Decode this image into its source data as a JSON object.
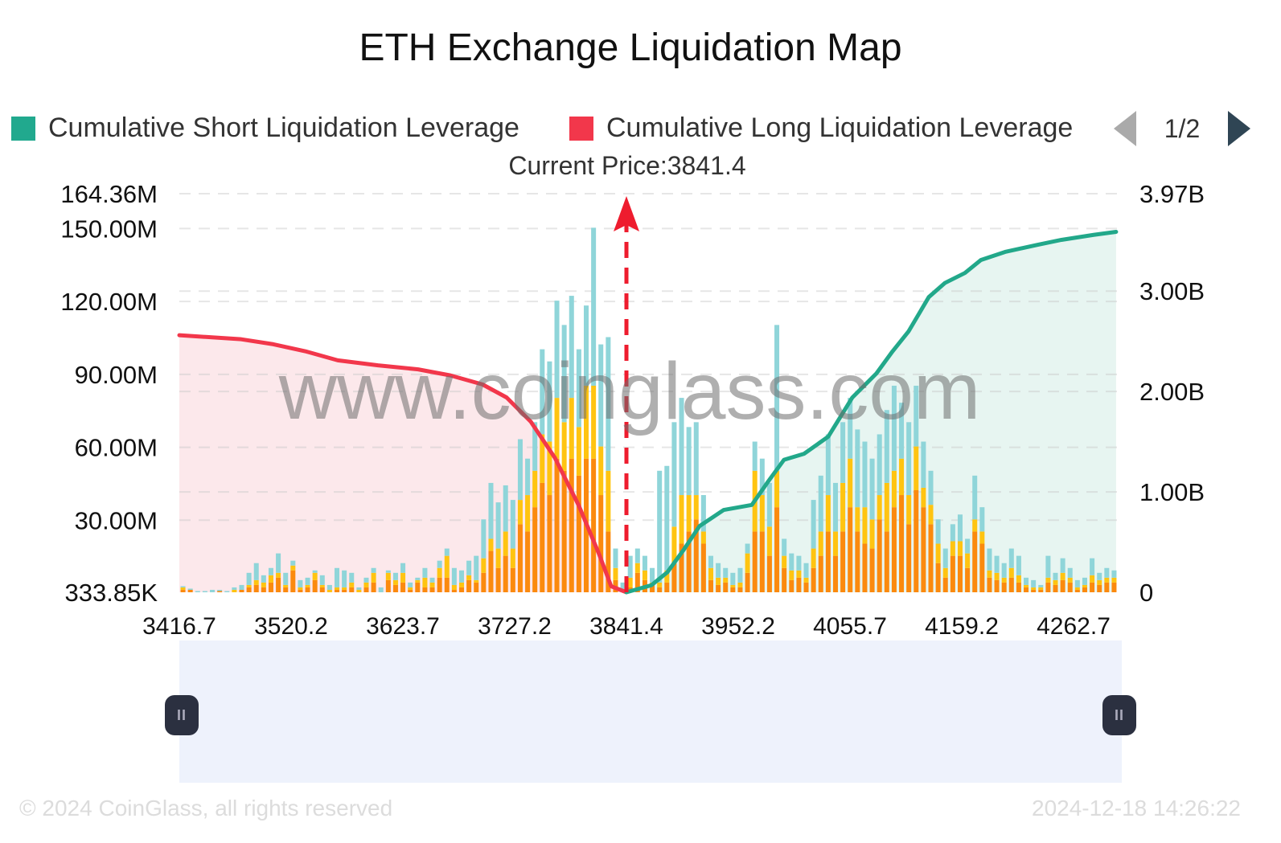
{
  "chart_data": {
    "type": "bar",
    "title": "ETH Exchange Liquidation Map",
    "legend": {
      "placement": "top",
      "entries": [
        {
          "name": "Cumulative Short Liquidation Leverage",
          "color": "#21a98e"
        },
        {
          "name": "Cumulative Long Liquidation Leverage",
          "color": "#f2374b"
        }
      ],
      "page": "1/2"
    },
    "current_price_label": "Current Price:3841.4",
    "current_price": 3841.4,
    "x_tick_labels": [
      "3416.7",
      "3520.2",
      "3623.7",
      "3727.2",
      "3841.4",
      "3952.2",
      "4055.7",
      "4159.2",
      "4262.7"
    ],
    "xlim": [
      3416.7,
      4308.1
    ],
    "left_axis": {
      "unit": "USD",
      "ylim": [
        0.33385,
        164.36
      ],
      "tick_values": [
        0.33385,
        30,
        60,
        90,
        120,
        150,
        164.36
      ],
      "tick_labels": [
        "333.85K",
        "30.00M",
        "60.00M",
        "90.00M",
        "120.00M",
        "150.00M",
        "164.36M"
      ]
    },
    "right_axis": {
      "unit": "USD",
      "ylim": [
        0,
        3.97
      ],
      "tick_values": [
        0,
        1,
        2,
        3,
        3.97
      ],
      "tick_labels": [
        "0",
        "1.00B",
        "2.00B",
        "3.00B",
        "3.97B"
      ]
    },
    "grid": true,
    "bar_series_colors": {
      "orange": "#fb8a0e",
      "yellow": "#ffc411",
      "cyan": "#8fd5d9"
    },
    "bars_million": {
      "orange": [
        1,
        1,
        0,
        0,
        0,
        0.5,
        0,
        0,
        1,
        2,
        3,
        2,
        4,
        6,
        2,
        9,
        1,
        2,
        5,
        2,
        0,
        1,
        1,
        2,
        0,
        2,
        4,
        0,
        5,
        3,
        4,
        1,
        4,
        2,
        2,
        6,
        6,
        1,
        2,
        5,
        4,
        8,
        17,
        10,
        15,
        10,
        28,
        25,
        35,
        45,
        40,
        55,
        50,
        55,
        48,
        55,
        55,
        40,
        25,
        5,
        0,
        2,
        8,
        5,
        3,
        2,
        4,
        12,
        20,
        25,
        30,
        20,
        5,
        3,
        4,
        2,
        2,
        8,
        25,
        25,
        15,
        35,
        10,
        5,
        6,
        4,
        10,
        15,
        25,
        15,
        25,
        35,
        25,
        20,
        18,
        30,
        25,
        35,
        40,
        28,
        42,
        35,
        28,
        12,
        6,
        15,
        15,
        10,
        25,
        20,
        6,
        5,
        4,
        6,
        4,
        2,
        1,
        1,
        4,
        3,
        5,
        4,
        1,
        2,
        4,
        3,
        4,
        4
      ],
      "yellow": [
        1,
        0,
        0,
        0,
        0,
        0,
        0,
        1,
        0,
        1,
        2,
        2,
        3,
        2,
        1,
        2,
        1,
        1,
        3,
        1,
        1,
        1,
        1,
        2,
        1,
        2,
        4,
        0,
        3,
        2,
        4,
        1,
        1,
        4,
        2,
        4,
        9,
        2,
        2,
        2,
        1,
        6,
        5,
        8,
        10,
        8,
        10,
        15,
        15,
        20,
        22,
        25,
        20,
        25,
        20,
        30,
        30,
        20,
        25,
        5,
        0,
        4,
        4,
        4,
        1,
        2,
        5,
        15,
        20,
        15,
        10,
        5,
        5,
        3,
        2,
        1,
        2,
        8,
        25,
        15,
        12,
        15,
        5,
        4,
        3,
        2,
        8,
        10,
        15,
        10,
        20,
        20,
        10,
        15,
        12,
        10,
        20,
        15,
        15,
        12,
        18,
        8,
        8,
        8,
        4,
        6,
        6,
        6,
        5,
        5,
        3,
        3,
        2,
        4,
        3,
        1,
        1,
        1,
        2,
        2,
        3,
        2,
        1,
        1,
        3,
        2,
        2,
        2
      ],
      "cyan": [
        0.5,
        0.5,
        0.5,
        0.5,
        1,
        0.5,
        0.5,
        1,
        2,
        5,
        7,
        3,
        3,
        8,
        5,
        2,
        3,
        3,
        1,
        4,
        2,
        8,
        7,
        4,
        1,
        2,
        2,
        2,
        1,
        3,
        4,
        2,
        1,
        4,
        2,
        3,
        3,
        7,
        5,
        6,
        10,
        16,
        23,
        19,
        19,
        20,
        25,
        15,
        20,
        35,
        33,
        40,
        40,
        42,
        32,
        33,
        65,
        42,
        55,
        8,
        4,
        9,
        6,
        6,
        6,
        46,
        43,
        43,
        40,
        28,
        30,
        15,
        5,
        6,
        4,
        5,
        6,
        4,
        12,
        15,
        18,
        60,
        7,
        7,
        6,
        6,
        20,
        23,
        25,
        20,
        25,
        25,
        32,
        27,
        25,
        25,
        30,
        35,
        23,
        30,
        25,
        19,
        14,
        10,
        8,
        7,
        11,
        6,
        18,
        10,
        9,
        7,
        6,
        8,
        8,
        3,
        3,
        1,
        9,
        3,
        6,
        4,
        3,
        3,
        7,
        3,
        4,
        3
      ]
    },
    "series": [
      {
        "name": "Cumulative Long Liquidation Leverage",
        "axis": "right",
        "unit": "B",
        "x": [
          3416.7,
          3475.5,
          3506.1,
          3536.6,
          3567.2,
          3605.4,
          3643.5,
          3674.1,
          3704.7,
          3727.6,
          3750.5,
          3773.4,
          3796.3,
          3815.4,
          3826.9,
          3841.4
        ],
        "values": [
          2.56,
          2.52,
          2.47,
          2.4,
          2.31,
          2.26,
          2.22,
          2.16,
          2.07,
          1.94,
          1.7,
          1.34,
          0.86,
          0.38,
          0.06,
          0
        ]
      },
      {
        "name": "Cumulative Short Liquidation Leverage",
        "axis": "right",
        "unit": "B",
        "x": [
          3841.4,
          3865.0,
          3880.3,
          3895.6,
          3910.9,
          3933.8,
          3960.5,
          3975.8,
          3991.1,
          4010.2,
          4033.1,
          4056.0,
          4078.9,
          4094.2,
          4109.5,
          4128.6,
          4143.8,
          4162.9,
          4178.2,
          4201.1,
          4231.7,
          4254.6,
          4285.2,
          4306.5
        ],
        "values": [
          0,
          0.07,
          0.2,
          0.42,
          0.66,
          0.82,
          0.87,
          1.1,
          1.32,
          1.38,
          1.55,
          1.94,
          2.18,
          2.4,
          2.6,
          2.94,
          3.08,
          3.18,
          3.31,
          3.39,
          3.46,
          3.51,
          3.56,
          3.59
        ]
      }
    ]
  },
  "watermark": "www.coinglass.com",
  "footer": {
    "copyright": "© 2024 CoinGlass, all rights reserved",
    "timestamp": "2024-12-18 14:26:22"
  },
  "zoom_slider": {
    "start_percent": 0,
    "end_percent": 100,
    "handle_glyph": "II"
  }
}
